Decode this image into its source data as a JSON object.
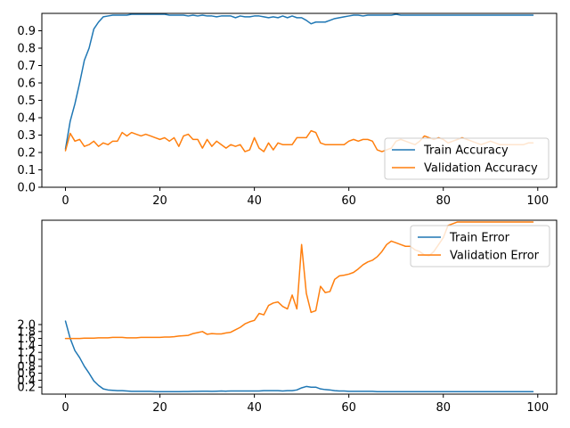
{
  "chart_data": [
    {
      "type": "line",
      "title": "",
      "xlabel": "",
      "ylabel": "",
      "xlim": [
        -5,
        104
      ],
      "ylim": [
        0,
        1.0
      ],
      "xticks": [
        0,
        20,
        40,
        60,
        80,
        100
      ],
      "yticks": [
        0.0,
        0.1,
        0.2,
        0.3,
        0.4,
        0.5,
        0.6,
        0.7,
        0.8,
        0.9
      ],
      "ytick_labels": [
        "0.0",
        "0.1",
        "0.2",
        "0.3",
        "0.4",
        "0.5",
        "0.6",
        "0.7",
        "0.8",
        "0.9"
      ],
      "legend_position": "lower-right",
      "grid": false,
      "series": [
        {
          "name": "Train Accuracy",
          "color": "#1f77b4",
          "values": [
            0.22,
            0.38,
            0.48,
            0.6,
            0.73,
            0.8,
            0.91,
            0.95,
            0.98,
            0.985,
            0.99,
            0.99,
            0.99,
            0.99,
            0.995,
            0.995,
            0.995,
            0.995,
            0.995,
            0.995,
            0.995,
            0.995,
            0.99,
            0.99,
            0.99,
            0.99,
            0.985,
            0.99,
            0.985,
            0.99,
            0.985,
            0.985,
            0.98,
            0.985,
            0.985,
            0.985,
            0.975,
            0.985,
            0.98,
            0.98,
            0.985,
            0.985,
            0.98,
            0.975,
            0.98,
            0.975,
            0.985,
            0.975,
            0.985,
            0.975,
            0.975,
            0.96,
            0.94,
            0.95,
            0.95,
            0.95,
            0.96,
            0.97,
            0.975,
            0.98,
            0.985,
            0.99,
            0.99,
            0.985,
            0.99,
            0.99,
            0.99,
            0.99,
            0.99,
            0.99,
            0.995,
            0.99,
            0.99,
            0.99,
            0.99,
            0.99,
            0.99,
            0.99,
            0.99,
            0.99,
            0.99,
            0.99,
            0.99,
            0.99,
            0.99,
            0.99,
            0.99,
            0.99,
            0.99,
            0.99,
            0.99,
            0.99,
            0.99,
            0.99,
            0.99,
            0.99,
            0.99,
            0.99,
            0.99,
            0.99
          ]
        },
        {
          "name": "Validation Accuracy",
          "color": "#ff7f0e",
          "values": [
            0.21,
            0.31,
            0.265,
            0.275,
            0.235,
            0.245,
            0.265,
            0.235,
            0.255,
            0.245,
            0.265,
            0.265,
            0.315,
            0.295,
            0.315,
            0.305,
            0.295,
            0.305,
            0.295,
            0.285,
            0.275,
            0.285,
            0.265,
            0.285,
            0.235,
            0.295,
            0.305,
            0.275,
            0.275,
            0.225,
            0.275,
            0.235,
            0.265,
            0.245,
            0.225,
            0.245,
            0.235,
            0.245,
            0.205,
            0.215,
            0.285,
            0.225,
            0.205,
            0.255,
            0.215,
            0.255,
            0.245,
            0.245,
            0.245,
            0.285,
            0.285,
            0.285,
            0.325,
            0.315,
            0.255,
            0.245,
            0.245,
            0.245,
            0.245,
            0.245,
            0.265,
            0.275,
            0.265,
            0.275,
            0.275,
            0.265,
            0.215,
            0.205,
            0.215,
            0.225,
            0.265,
            0.275,
            0.265,
            0.255,
            0.245,
            0.265,
            0.295,
            0.285,
            0.275,
            0.285,
            0.275,
            0.255,
            0.265,
            0.275,
            0.285,
            0.275,
            0.265,
            0.255,
            0.245,
            0.255,
            0.265,
            0.255,
            0.245,
            0.245,
            0.245,
            0.245,
            0.245,
            0.245,
            0.255,
            0.255
          ]
        }
      ]
    },
    {
      "type": "line",
      "title": "",
      "xlabel": "",
      "ylabel": "",
      "xlim": [
        -5,
        104
      ],
      "ylim": [
        0,
        5.0
      ],
      "xticks": [
        0,
        20,
        40,
        60,
        80,
        100
      ],
      "yticks": [
        0.2,
        0.4,
        0.6,
        0.8,
        1.0,
        1.2,
        1.4,
        1.6,
        1.8,
        2.0
      ],
      "ytick_labels": [
        "0.2",
        "0.4",
        "0.6",
        "0.8",
        "1.0",
        "1.2",
        "1.4",
        "1.6",
        "1.8",
        "2.0"
      ],
      "legend_position": "upper-right",
      "grid": false,
      "series": [
        {
          "name": "Train Error",
          "color": "#1f77b4",
          "values": [
            2.1,
            1.6,
            1.25,
            1.05,
            0.8,
            0.6,
            0.38,
            0.25,
            0.15,
            0.12,
            0.11,
            0.1,
            0.1,
            0.09,
            0.08,
            0.08,
            0.08,
            0.08,
            0.08,
            0.07,
            0.07,
            0.07,
            0.07,
            0.07,
            0.07,
            0.075,
            0.075,
            0.08,
            0.08,
            0.085,
            0.085,
            0.08,
            0.085,
            0.09,
            0.085,
            0.09,
            0.09,
            0.09,
            0.09,
            0.09,
            0.09,
            0.09,
            0.1,
            0.1,
            0.1,
            0.1,
            0.09,
            0.1,
            0.1,
            0.12,
            0.18,
            0.22,
            0.2,
            0.2,
            0.15,
            0.13,
            0.12,
            0.1,
            0.09,
            0.09,
            0.08,
            0.08,
            0.08,
            0.08,
            0.08,
            0.08,
            0.07,
            0.07,
            0.07,
            0.07,
            0.07,
            0.07,
            0.07,
            0.07,
            0.07,
            0.07,
            0.07,
            0.07,
            0.07,
            0.07,
            0.07,
            0.07,
            0.07,
            0.07,
            0.07,
            0.07,
            0.07,
            0.07,
            0.07,
            0.07,
            0.07,
            0.07,
            0.07,
            0.07,
            0.07,
            0.07,
            0.07,
            0.07,
            0.07,
            0.07
          ]
        },
        {
          "name": "Validation Error",
          "color": "#ff7f0e",
          "values": [
            1.6,
            1.6,
            1.6,
            1.6,
            1.61,
            1.61,
            1.61,
            1.62,
            1.62,
            1.62,
            1.63,
            1.63,
            1.63,
            1.62,
            1.62,
            1.62,
            1.63,
            1.63,
            1.63,
            1.63,
            1.63,
            1.64,
            1.64,
            1.65,
            1.67,
            1.68,
            1.69,
            1.74,
            1.77,
            1.8,
            1.72,
            1.74,
            1.73,
            1.73,
            1.76,
            1.78,
            1.85,
            1.92,
            2.02,
            2.08,
            2.12,
            2.32,
            2.28,
            2.55,
            2.62,
            2.65,
            2.52,
            2.45,
            2.85,
            2.45,
            4.3,
            2.9,
            2.35,
            2.4,
            3.1,
            2.92,
            2.95,
            3.3,
            3.4,
            3.42,
            3.45,
            3.5,
            3.6,
            3.72,
            3.8,
            3.85,
            3.95,
            4.1,
            4.3,
            4.4,
            4.35,
            4.3,
            4.25,
            4.25,
            4.15,
            4.1,
            4.0,
            3.98,
            4.1,
            4.3,
            4.5,
            4.85,
            4.9,
            4.95,
            4.95,
            4.95,
            4.95,
            4.95,
            4.95,
            4.95,
            4.95,
            4.95,
            4.95,
            4.95,
            4.95,
            4.95,
            4.95,
            4.95,
            4.95,
            4.95
          ]
        }
      ]
    }
  ]
}
